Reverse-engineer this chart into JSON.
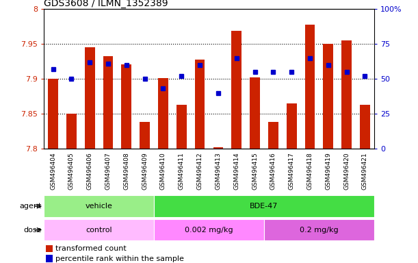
{
  "title": "GDS3608 / ILMN_1352389",
  "samples": [
    "GSM496404",
    "GSM496405",
    "GSM496406",
    "GSM496407",
    "GSM496408",
    "GSM496409",
    "GSM496410",
    "GSM496411",
    "GSM496412",
    "GSM496413",
    "GSM496414",
    "GSM496415",
    "GSM496416",
    "GSM496417",
    "GSM496418",
    "GSM496419",
    "GSM496420",
    "GSM496421"
  ],
  "red_values": [
    7.9,
    7.85,
    7.945,
    7.933,
    7.921,
    7.838,
    7.901,
    7.863,
    7.928,
    7.802,
    7.969,
    7.902,
    7.838,
    7.865,
    7.978,
    7.95,
    7.955,
    7.863
  ],
  "blue_percentiles": [
    57,
    50,
    62,
    61,
    60,
    50,
    43,
    52,
    60,
    40,
    65,
    55,
    55,
    55,
    65,
    60,
    55,
    52
  ],
  "y_min": 7.8,
  "y_max": 8.0,
  "y_ticks": [
    7.8,
    7.85,
    7.9,
    7.95,
    8.0
  ],
  "y_ticklabels": [
    "7.8",
    "7.85",
    "7.9",
    "7.95",
    "8"
  ],
  "y2_ticks": [
    0,
    25,
    50,
    75,
    100
  ],
  "y2_labels": [
    "0",
    "25",
    "50",
    "75",
    "100%"
  ],
  "agent_groups": [
    {
      "label": "vehicle",
      "start": 0,
      "end": 6,
      "color": "#99ee88"
    },
    {
      "label": "BDE-47",
      "start": 6,
      "end": 18,
      "color": "#44dd44"
    }
  ],
  "dose_colors": [
    "#ffbbff",
    "#ff88ff",
    "#dd66dd"
  ],
  "dose_groups": [
    {
      "label": "control",
      "start": 0,
      "end": 6
    },
    {
      "label": "0.002 mg/kg",
      "start": 6,
      "end": 12
    },
    {
      "label": "0.2 mg/kg",
      "start": 12,
      "end": 18
    }
  ],
  "bar_color": "#cc2200",
  "dot_color": "#0000cc",
  "xtick_bg": "#cccccc",
  "title_fontsize": 10,
  "legend_fontsize": 8
}
